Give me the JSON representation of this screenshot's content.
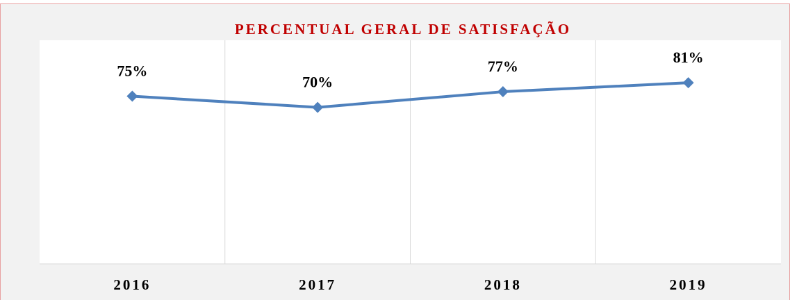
{
  "chart_data": {
    "type": "line",
    "title": "PERCENTUAL GERAL DE SATISFAÇÃO",
    "categories": [
      "2016",
      "2017",
      "2018",
      "2019"
    ],
    "values": [
      75,
      70,
      77,
      81
    ],
    "value_labels": [
      "75%",
      "70%",
      "77%",
      "81%"
    ],
    "color": "#4f81bd",
    "ylim": [
      0,
      100
    ]
  }
}
